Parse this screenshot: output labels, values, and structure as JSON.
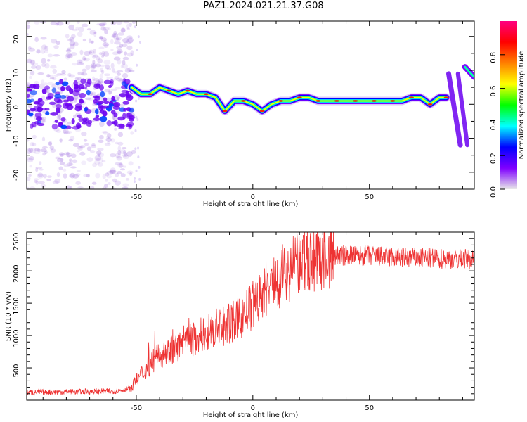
{
  "title": "PAZ1.2024.021.21.37.G08",
  "chart_data": [
    {
      "type": "heatmap",
      "xlabel": "Height of straight line (km)",
      "ylabel": "Frequency (Hz)",
      "xlim": [
        -97,
        95
      ],
      "ylim": [
        -25,
        24.5
      ],
      "x_ticks": [
        -50,
        0,
        50
      ],
      "y_ticks": [
        -20,
        -10,
        0,
        10,
        20
      ],
      "colorbar": {
        "label": "Normalized spectral amplitude",
        "range": [
          0,
          1
        ],
        "ticks": [
          "0.0",
          "0.2",
          "0.4",
          "0.6",
          "0.8"
        ],
        "colormap": [
          "#e8e8e8",
          "#7f00ff",
          "#0000ff",
          "#00ffff",
          "#00ff00",
          "#ffff00",
          "#ff8000",
          "#ff0000",
          "#ff0080"
        ]
      },
      "ridge": {
        "x": [
          -52,
          -48,
          -44,
          -40,
          -36,
          -32,
          -28,
          -24,
          -20,
          -16,
          -12,
          -8,
          -4,
          0,
          4,
          8,
          12,
          16,
          20,
          24,
          28,
          32,
          36,
          40,
          44,
          48,
          52,
          56,
          60,
          64,
          68,
          72,
          76,
          80,
          83
        ],
        "y": [
          5,
          3,
          3,
          5,
          4,
          3,
          4,
          3,
          3,
          2,
          -2,
          1,
          1,
          0,
          -2,
          0,
          1,
          1,
          2,
          2,
          1,
          1,
          1,
          1,
          1,
          1,
          1,
          1,
          1,
          1,
          2,
          2,
          0,
          2,
          2
        ]
      }
    },
    {
      "type": "line",
      "xlabel": "Height of straight line (km)",
      "ylabel": "SNR (10 * v/v)",
      "xlim": [
        -97,
        95
      ],
      "ylim": [
        0,
        2600
      ],
      "x_ticks": [
        -50,
        0,
        50
      ],
      "y_ticks": [
        500,
        1000,
        1500,
        2000,
        2500
      ],
      "color": "#ee3333",
      "trend": {
        "x": [
          -97,
          -60,
          -52,
          -50,
          -45,
          -40,
          -35,
          -30,
          -25,
          -20,
          -15,
          -10,
          -5,
          0,
          5,
          10,
          15,
          20,
          25,
          30,
          35,
          40,
          50,
          60,
          70,
          80,
          95
        ],
        "y": [
          120,
          140,
          180,
          300,
          520,
          700,
          780,
          850,
          950,
          1050,
          1120,
          1180,
          1280,
          1450,
          1650,
          1850,
          2000,
          2100,
          2170,
          2220,
          2230,
          2240,
          2230,
          2210,
          2200,
          2190,
          2180
        ]
      }
    }
  ]
}
